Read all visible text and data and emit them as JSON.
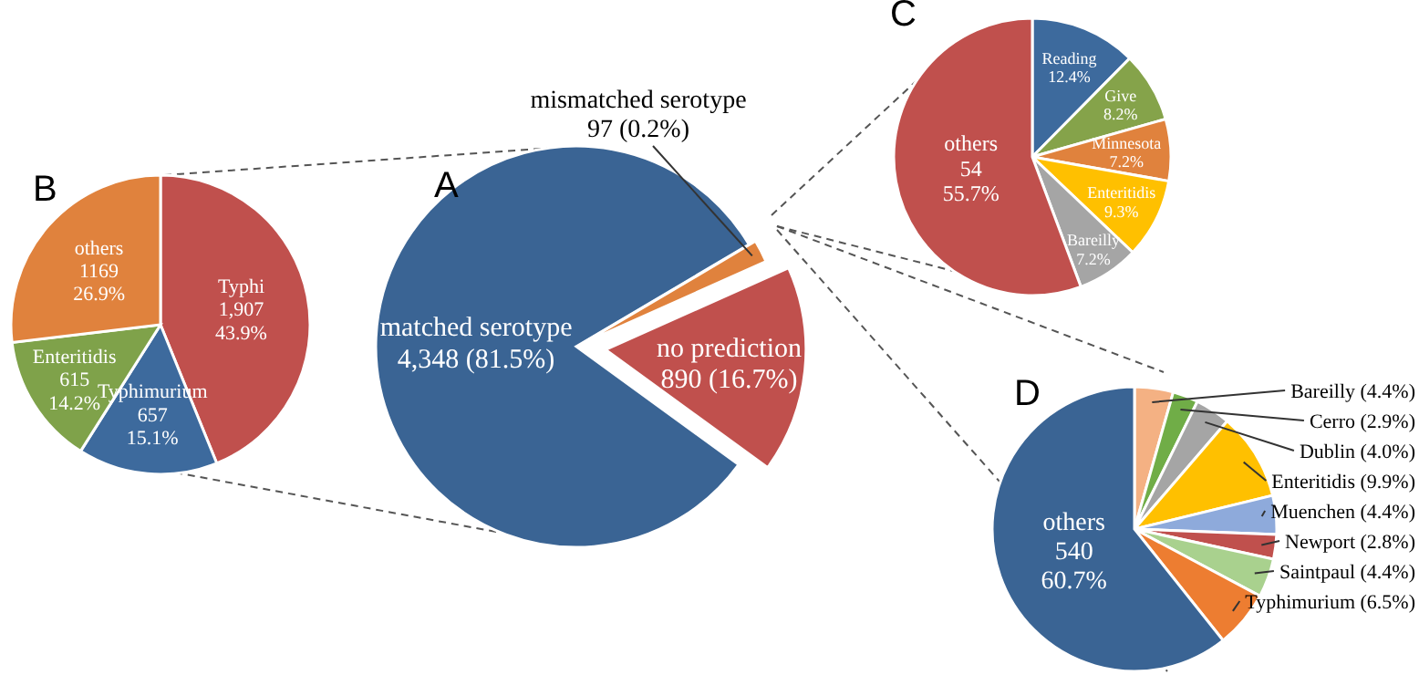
{
  "chart_data": [
    {
      "type": "pie",
      "title": "A",
      "categories": [
        "matched serotype",
        "mismatched serotype",
        "no prediction"
      ],
      "values": [
        4348,
        97,
        890
      ],
      "colors": [
        "#3a6494",
        "#e0823d",
        "#c0504d"
      ],
      "value_labels": [
        "4,348 (81.5%)",
        "97 (0.2%)",
        "890 (16.7%)"
      ]
    },
    {
      "type": "pie",
      "title": "B",
      "categories": [
        "Typhi",
        "Typhimurium",
        "Enteritidis",
        "others"
      ],
      "values": [
        1907,
        657,
        615,
        1169
      ],
      "colors": [
        "#c0504d",
        "#3d6a9d",
        "#7fa24a",
        "#e0823d"
      ],
      "value_labels": [
        "1,907\n43.9%",
        "657\n15.1%",
        "615\n14.2%",
        "1169\n26.9%"
      ]
    },
    {
      "type": "pie",
      "title": "C",
      "categories": [
        "Reading",
        "Give",
        "Minnesota",
        "Enteritidis",
        "Bareilly",
        "others"
      ],
      "values": [
        12.4,
        8.2,
        7.2,
        9.3,
        7.2,
        55.7
      ],
      "colors": [
        "#3d6a9d",
        "#85a34a",
        "#e0823d",
        "#ffc000",
        "#a5a5a5",
        "#c0504d"
      ],
      "value_labels": [
        "12.4%",
        "8.2%",
        "7.2%",
        "9.3%",
        "7.2%",
        "54\n55.7%"
      ]
    },
    {
      "type": "pie",
      "title": "D",
      "categories": [
        "Bareilly",
        "Cerro",
        "Dublin",
        "Enteritidis",
        "Muenchen",
        "Newport",
        "Saintpaul",
        "Typhimurium",
        "others"
      ],
      "values": [
        4.4,
        2.9,
        4.0,
        9.9,
        4.4,
        2.8,
        4.4,
        6.5,
        60.7
      ],
      "colors": [
        "#f4b183",
        "#70ad47",
        "#a5a5a5",
        "#ffc000",
        "#8eaadb",
        "#c0504d",
        "#a9d18e",
        "#ed7d31",
        "#3a6494"
      ],
      "value_labels": [
        "(4.4%)",
        "(2.9%)",
        "(4.0%)",
        "(9.9%)",
        "(4.4%)",
        "(2.8%)",
        "(4.4%)",
        "(6.5%)",
        "540\n60.7%"
      ]
    }
  ]
}
